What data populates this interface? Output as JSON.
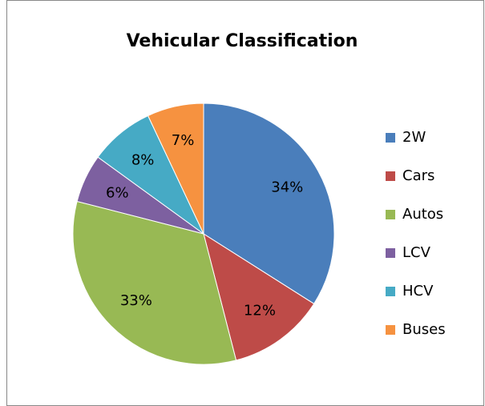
{
  "chart_data": {
    "type": "pie",
    "title": "Vehicular Classification",
    "categories": [
      "2W",
      "Cars",
      "Autos",
      "LCV",
      "HCV",
      "Buses"
    ],
    "values": [
      34,
      12,
      33,
      6,
      8,
      7
    ],
    "value_labels": [
      "34%",
      "12%",
      "33%",
      "6%",
      "8%",
      "7%"
    ],
    "colors": [
      "#4a7ebb",
      "#be4b48",
      "#98b954",
      "#7d60a0",
      "#46aac5",
      "#f69240"
    ],
    "legend": "right"
  }
}
